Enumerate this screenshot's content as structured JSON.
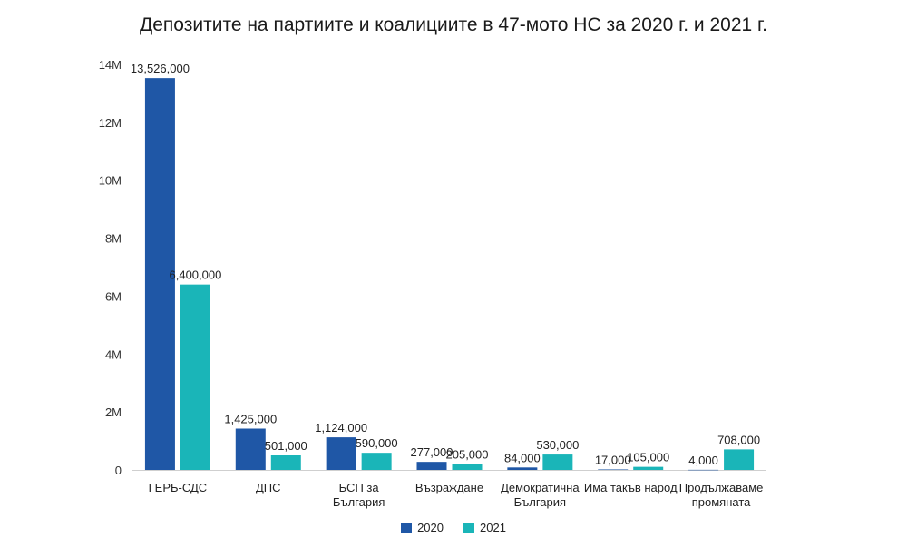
{
  "chart_data": {
    "type": "bar",
    "title": "Депозитите на партиите и коалициите в 47-мото НС за 2020 г. и 2021 г.",
    "categories": [
      [
        "ГЕРБ-СДС"
      ],
      [
        "ДПС"
      ],
      [
        "БСП за",
        "България"
      ],
      [
        "Възраждане"
      ],
      [
        "Демократична",
        "България"
      ],
      [
        "Има такъв народ"
      ],
      [
        "Продължаваме",
        "промяната"
      ]
    ],
    "series": [
      {
        "name": "2020",
        "color": "#1f57a6",
        "values": [
          13526000,
          1425000,
          1124000,
          277000,
          84000,
          17000,
          4000
        ],
        "labels": [
          "13,526,000",
          "1,425,000",
          "1,124,000",
          "277,000",
          "84,000",
          "17,000",
          "4,000"
        ]
      },
      {
        "name": "2021",
        "color": "#1ab5b8",
        "values": [
          6400000,
          501000,
          590000,
          205000,
          530000,
          105000,
          708000
        ],
        "labels": [
          "6,400,000",
          "501,000",
          "590,000",
          "205,000",
          "530,000",
          "105,000",
          "708,000"
        ]
      }
    ],
    "yticks": [
      {
        "value": 0,
        "label": "0"
      },
      {
        "value": 2000000,
        "label": "2M"
      },
      {
        "value": 4000000,
        "label": "4M"
      },
      {
        "value": 6000000,
        "label": "6M"
      },
      {
        "value": 8000000,
        "label": "8M"
      },
      {
        "value": 10000000,
        "label": "10M"
      },
      {
        "value": 12000000,
        "label": "12M"
      },
      {
        "value": 14000000,
        "label": "14M"
      }
    ],
    "ylim": [
      0,
      14000000
    ],
    "grid": false,
    "legend_position": "bottom"
  }
}
